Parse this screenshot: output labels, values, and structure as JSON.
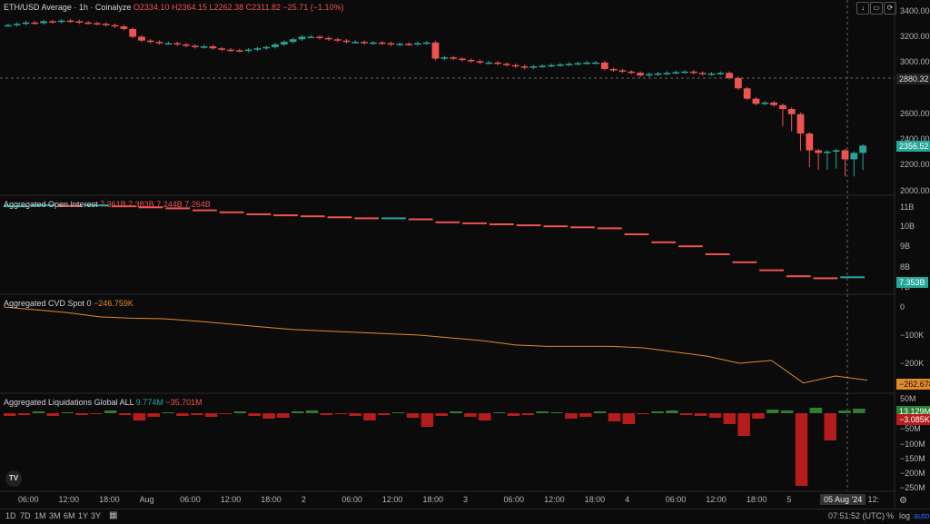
{
  "header": {
    "symbol": "ETH/USD Average · 1h · Coinalyze",
    "ohlc": {
      "o": "O2334.10",
      "h": "H2364.15",
      "l": "L2262.38",
      "c": "C2311.82",
      "chg": "−25.71 (−1.10%)"
    }
  },
  "panes": {
    "oi": {
      "label": "Aggregated Open Interest",
      "vals": [
        "7.361B",
        "7.383B",
        "7.244B",
        "7.264B"
      ]
    },
    "cvd": {
      "label": "Aggregated CVD Spot 0",
      "val": "−246.759K"
    },
    "liq": {
      "label": "Aggregated Liquidations Global ALL",
      "v1": "9.774M",
      "v2": "−35.701M"
    }
  },
  "badges": {
    "crosshair_price": "2880.32",
    "last_price": "2356.52",
    "oi_last": "7.353B",
    "cvd_last": "−262.678K",
    "liq_pos": "13.129M",
    "liq_neg": "−3.085K",
    "crosshair_time": "05 Aug '24"
  },
  "axes": {
    "price_ticks": [
      "3400.00",
      "3200.00",
      "3000.00",
      "2600.00",
      "2400.00",
      "2200.00",
      "2000.00"
    ],
    "oi_ticks": [
      "11B",
      "10B",
      "9B",
      "8B",
      "7B"
    ],
    "cvd_ticks": [
      "0",
      "−100K",
      "−200K"
    ],
    "liq_ticks": [
      "50M",
      "0",
      "−50M",
      "−100M",
      "−150M",
      "−200M",
      "−250M"
    ],
    "time_ticks": [
      "06:00",
      "12:00",
      "18:00",
      "Aug",
      "06:00",
      "12:00",
      "18:00",
      "2",
      "06:00",
      "12:00",
      "18:00",
      "3",
      "06:00",
      "12:00",
      "18:00",
      "4",
      "06:00",
      "12:00",
      "18:00",
      "5",
      "05:00",
      "12:"
    ]
  },
  "footer": {
    "timeframes": [
      "1D",
      "7D",
      "1M",
      "3M",
      "6M",
      "1Y",
      "3Y"
    ],
    "clock": "07:51:52 (UTC)",
    "pct": "%",
    "log": "log",
    "auto": "auto"
  },
  "logo": "TV",
  "colors": {
    "up": "#26a69a",
    "down": "#ef5350",
    "cvd": "#e08a2c",
    "liq_pos": "#2e7d32",
    "liq_neg": "#b71c1c",
    "oi_badge": "#26a69a"
  },
  "chart_data": {
    "type": "candlestick",
    "price_closes": [
      3290,
      3300,
      3310,
      3305,
      3320,
      3315,
      3325,
      3320,
      3310,
      3305,
      3300,
      3290,
      3280,
      3260,
      3200,
      3170,
      3160,
      3150,
      3150,
      3140,
      3130,
      3120,
      3125,
      3110,
      3100,
      3095,
      3090,
      3100,
      3110,
      3120,
      3140,
      3160,
      3180,
      3200,
      3200,
      3190,
      3180,
      3170,
      3160,
      3160,
      3150,
      3155,
      3150,
      3140,
      3145,
      3140,
      3150,
      3155,
      3030,
      3040,
      3030,
      3020,
      3010,
      3000,
      3000,
      2990,
      2980,
      2970,
      2960,
      2970,
      2975,
      2980,
      2985,
      2990,
      2995,
      3000,
      3000,
      2950,
      2940,
      2930,
      2920,
      2900,
      2910,
      2915,
      2920,
      2925,
      2930,
      2920,
      2910,
      2915,
      2920,
      2880,
      2800,
      2720,
      2680,
      2690,
      2670,
      2640,
      2600,
      2450,
      2320,
      2300,
      2310,
      2320,
      2250,
      2300,
      2356
    ],
    "oi_values_B": [
      10.9,
      10.95,
      10.92,
      10.95,
      10.9,
      10.85,
      10.8,
      10.7,
      10.6,
      10.5,
      10.45,
      10.4,
      10.35,
      10.3,
      10.3,
      10.25,
      10.1,
      10.05,
      10.0,
      9.95,
      9.9,
      9.85,
      9.8,
      9.5,
      9.1,
      8.9,
      8.5,
      8.1,
      7.7,
      7.4,
      7.3,
      7.35
    ],
    "cvd_values_K": [
      0,
      -10,
      -20,
      -35,
      -40,
      -42,
      -50,
      -60,
      -70,
      -80,
      -85,
      -90,
      -95,
      -100,
      -110,
      -120,
      -135,
      -140,
      -140,
      -140,
      -145,
      -160,
      -175,
      -200,
      -190,
      -270,
      -245,
      -260
    ]
  }
}
